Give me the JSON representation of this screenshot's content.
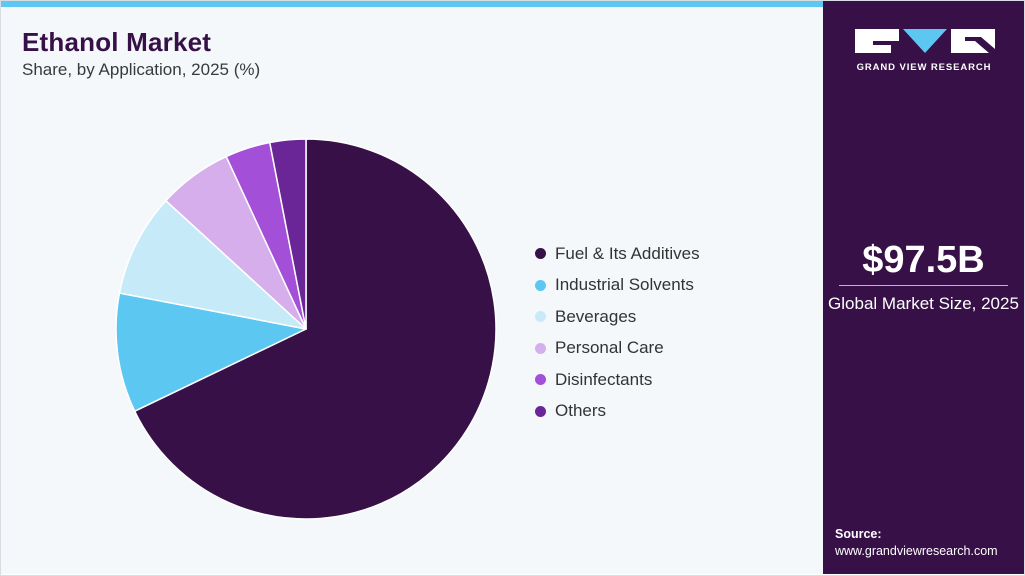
{
  "header": {
    "title": "Ethanol Market",
    "subtitle": "Share, by Application, 2025 (%)"
  },
  "chart_data": {
    "type": "pie",
    "title": "Ethanol Market",
    "subtitle": "Share, by Application, 2025 (%)",
    "start_angle_deg": 0,
    "direction": "clockwise",
    "legend_position": "right",
    "categories": [
      "Fuel & Its Additives",
      "Industrial Solvents",
      "Beverages",
      "Personal Care",
      "Disinfectants",
      "Others"
    ],
    "values": [
      68.9,
      10.3,
      8.9,
      6.4,
      3.9,
      3.1
    ],
    "colors": [
      "#361046",
      "#5cc8f2",
      "#c6eaf8",
      "#d5aeeb",
      "#a34fd8",
      "#6a2596"
    ]
  },
  "sidebar": {
    "logo_text": "GRAND VIEW RESEARCH",
    "market_size": "$97.5B",
    "market_size_label": "Global Market Size, 2025",
    "source_label": "Source:",
    "source_url": "www.grandviewresearch.com",
    "colors": {
      "background": "#361046",
      "accent": "#5cc8f2"
    }
  }
}
